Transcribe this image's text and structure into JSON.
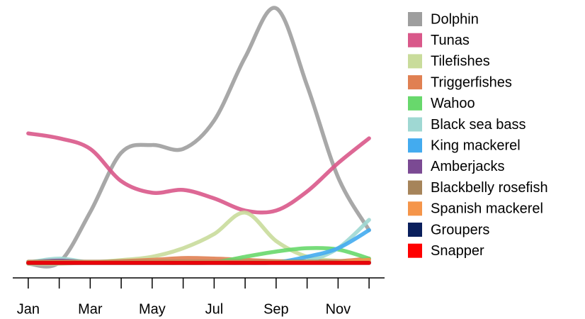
{
  "chart_data": {
    "type": "line",
    "categories": [
      "Jan",
      null,
      "Mar",
      null,
      "May",
      null,
      "Jul",
      null,
      "Sep",
      null,
      "Nov",
      null
    ],
    "ylim": [
      0,
      100
    ],
    "legend": "right",
    "series": [
      {
        "name": "Dolphin",
        "color": "#9e9e9e",
        "values": [
          0,
          0.5,
          20,
          43,
          46,
          44.5,
          55.5,
          80,
          99,
          69,
          33.5,
          13
        ]
      },
      {
        "name": "Tunas",
        "color": "#d9588a",
        "values": [
          50.5,
          48.6,
          44.5,
          32,
          27.5,
          28.6,
          25.3,
          20.6,
          20.6,
          28,
          39,
          48.6
        ]
      },
      {
        "name": "Tilefishes",
        "color": "#c9dc9b",
        "values": [
          0,
          0,
          0.5,
          1.4,
          2.7,
          6,
          11.5,
          19.8,
          8.8,
          2.7,
          1.1,
          0.5
        ]
      },
      {
        "name": "Triggerfishes",
        "color": "#e08052",
        "values": [
          0.5,
          0.5,
          0.5,
          1,
          1.5,
          2.2,
          2,
          1.5,
          1,
          1,
          1,
          2
        ]
      },
      {
        "name": "Wahoo",
        "color": "#68d86c",
        "values": [
          0.3,
          0.3,
          0.3,
          0.3,
          0.3,
          0.3,
          0.5,
          2.7,
          4.7,
          6,
          5.5,
          2
        ]
      },
      {
        "name": "Black sea bass",
        "color": "#9fd8d3",
        "values": [
          0.5,
          2,
          0.5,
          0.5,
          0.5,
          0.5,
          0.5,
          0.5,
          0.5,
          1.1,
          6,
          17
        ]
      },
      {
        "name": "King mackerel",
        "color": "#43abef",
        "values": [
          0.3,
          0.3,
          0.3,
          0.3,
          0.3,
          0.3,
          0.3,
          0.3,
          0.5,
          2.7,
          6,
          13
        ]
      },
      {
        "name": "Amberjacks",
        "color": "#7b4a93",
        "values": [
          0.5,
          1.2,
          0.5,
          0.5,
          0.5,
          0.5,
          0.5,
          0.5,
          0.5,
          0.5,
          0.5,
          0.5
        ]
      },
      {
        "name": "Blackbelly rosefish",
        "color": "#a6845a",
        "values": [
          0.8,
          0.8,
          0.8,
          0.8,
          0.8,
          0.8,
          0.8,
          0.8,
          0.8,
          0.8,
          0.8,
          0.8
        ]
      },
      {
        "name": "Spanish mackerel",
        "color": "#f5954a",
        "values": [
          0.5,
          0.5,
          0.5,
          0.5,
          0.5,
          0.5,
          0.5,
          0.5,
          0.5,
          0.5,
          0.5,
          1.5
        ]
      },
      {
        "name": "Groupers",
        "color": "#0a1f5c",
        "values": [
          0.3,
          0.3,
          0.3,
          0.3,
          0.3,
          0.3,
          0.3,
          0.3,
          0.3,
          0.3,
          0.3,
          0.3
        ]
      },
      {
        "name": "Snapper",
        "color": "#ff0000",
        "values": [
          0.3,
          0.3,
          0.3,
          0.3,
          0.3,
          0.3,
          0.3,
          0.3,
          0.3,
          0.3,
          0.3,
          0.3
        ]
      }
    ]
  }
}
